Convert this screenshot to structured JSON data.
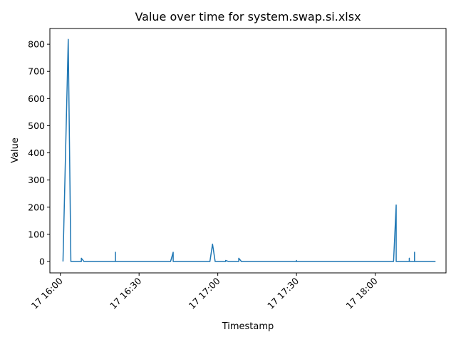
{
  "chart_data": {
    "type": "line",
    "title": "Value over time for system.swap.si.xlsx",
    "xlabel": "Timestamp",
    "ylabel": "Value",
    "line_color": "#1f77b4",
    "grid": false,
    "legend": "none",
    "xlim": [
      "2024-01-17 15:56",
      "2024-01-17 18:27"
    ],
    "ylim": [
      -42,
      858
    ],
    "x_ticks": [
      {
        "value": "2024-01-17 16:00",
        "label": "17 16:00"
      },
      {
        "value": "2024-01-17 16:30",
        "label": "17 16:30"
      },
      {
        "value": "2024-01-17 17:00",
        "label": "17 17:00"
      },
      {
        "value": "2024-01-17 17:30",
        "label": "17 17:30"
      },
      {
        "value": "2024-01-17 18:00",
        "label": "17 18:00"
      }
    ],
    "y_ticks": [
      0,
      100,
      200,
      300,
      400,
      500,
      600,
      700,
      800
    ],
    "series": [
      {
        "x": [
          "2024-01-17 16:01",
          "2024-01-17 16:03",
          "2024-01-17 16:04",
          "2024-01-17 16:08",
          "2024-01-17 16:08",
          "2024-01-17 16:09",
          "2024-01-17 16:21",
          "2024-01-17 16:21",
          "2024-01-17 16:21",
          "2024-01-17 16:42",
          "2024-01-17 16:43",
          "2024-01-17 16:43",
          "2024-01-17 16:57",
          "2024-01-17 16:58",
          "2024-01-17 16:59",
          "2024-01-17 17:03",
          "2024-01-17 17:03",
          "2024-01-17 17:04",
          "2024-01-17 17:08",
          "2024-01-17 17:08",
          "2024-01-17 17:09",
          "2024-01-17 17:30",
          "2024-01-17 17:30",
          "2024-01-17 17:30",
          "2024-01-17 18:07",
          "2024-01-17 18:08",
          "2024-01-17 18:08",
          "2024-01-17 18:13",
          "2024-01-17 18:13",
          "2024-01-17 18:13",
          "2024-01-17 18:15",
          "2024-01-17 18:15",
          "2024-01-17 18:15",
          "2024-01-17 18:23"
        ],
        "values": [
          0,
          818,
          0,
          0,
          12,
          0,
          0,
          34,
          0,
          0,
          34,
          0,
          0,
          64,
          0,
          0,
          4,
          0,
          0,
          12,
          0,
          0,
          4,
          0,
          0,
          208,
          0,
          0,
          12,
          0,
          0,
          34,
          0,
          0
        ]
      }
    ]
  }
}
